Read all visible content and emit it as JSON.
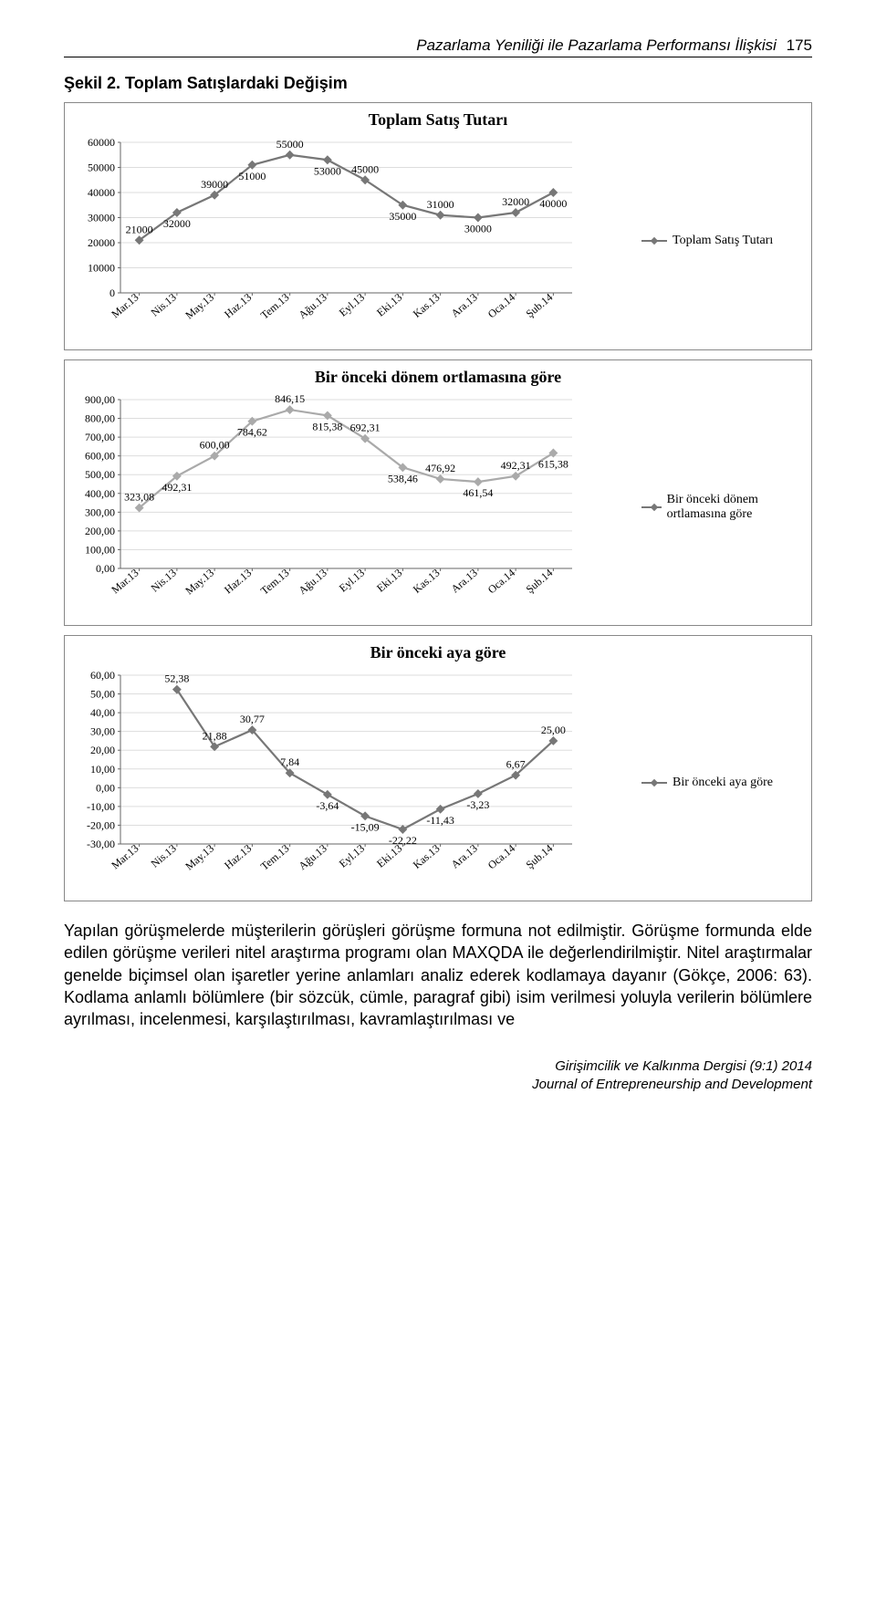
{
  "header": {
    "running_title": "Pazarlama Yeniliği ile Pazarlama Performansı İlişkisi",
    "page_number": "175"
  },
  "figure_caption": "Şekil 2. Toplam Satışlardaki Değişim",
  "months": [
    "Mar.13",
    "Nis.13",
    "May.13",
    "Haz.13",
    "Tem.13",
    "Ağu.13",
    "Eyl.13",
    "Eki.13",
    "Kas.13",
    "Ara.13",
    "Oca.14",
    "Şub.14"
  ],
  "chart1": {
    "title": "Toplam Satış Tutarı",
    "legend": "Toplam Satış Tutarı",
    "values": [
      21000,
      32000,
      39000,
      51000,
      55000,
      53000,
      45000,
      35000,
      31000,
      30000,
      32000,
      40000
    ],
    "labels": [
      "21000",
      "32000",
      "39000",
      "51000",
      "55000",
      "53000",
      "45000",
      "35000",
      "31000",
      "30000",
      "32000",
      "40000"
    ],
    "ymin": 0,
    "ymax": 60000,
    "ystep": 10000,
    "color": "#777777"
  },
  "chart2": {
    "title": "Bir önceki dönem ortlamasına göre",
    "legend": "Bir önceki dönem ortlamasına göre",
    "values": [
      323.08,
      492.31,
      600.0,
      784.62,
      846.15,
      815.38,
      692.31,
      538.46,
      476.92,
      461.54,
      492.31,
      615.38
    ],
    "labels": [
      "323,08",
      "492,31",
      "600,00",
      "784,62",
      "846,15",
      "815,38",
      "692,31",
      "538,46",
      "476,92",
      "461,54",
      "492,31",
      "615,38"
    ],
    "ymin": 0,
    "ymax": 900,
    "ystep": 100,
    "ytick_fmt": "decimal",
    "color": "#aaaaaa"
  },
  "chart3": {
    "title": "Bir önceki aya göre",
    "legend": "Bir önceki aya göre",
    "values": [
      null,
      52.38,
      21.88,
      30.77,
      7.84,
      -3.64,
      -15.09,
      -22.22,
      -11.43,
      -3.23,
      6.67,
      25.0
    ],
    "labels": [
      null,
      "52,38",
      "21,88",
      "30,77",
      "7,84",
      "-3,64",
      "-15,09",
      "-22,22",
      "-11,43",
      "-3,23",
      "6,67",
      "25,00"
    ],
    "ymin": -30,
    "ymax": 60,
    "ystep": 10,
    "ytick_fmt": "decimal",
    "color": "#777777"
  },
  "body_html": "<span class=\"first\"></span>Yapılan görüşmelerde müşterilerin görüşleri görüşme formuna not edilmiştir. Görüşme formunda elde edilen görüşme verileri nitel araştırma programı olan MAXQDA ile değerlendirilmiştir. Nitel araştırmalar genelde biçimsel olan işaretler yerine anlamları analiz ederek kodlamaya dayanır (Gökçe, 2006: 63). Kodlama anlamlı bölümlere (bir sözcük, cümle, paragraf gibi) isim verilmesi yoluyla verilerin bölümlere ayrılması, incelenmesi, karşılaştırılması, kavramlaştırılması ve",
  "footer": {
    "line1": "Girişimcilik ve Kalkınma Dergisi (9:1) 2014",
    "line2": "Journal of Entrepreneurship and Development"
  }
}
